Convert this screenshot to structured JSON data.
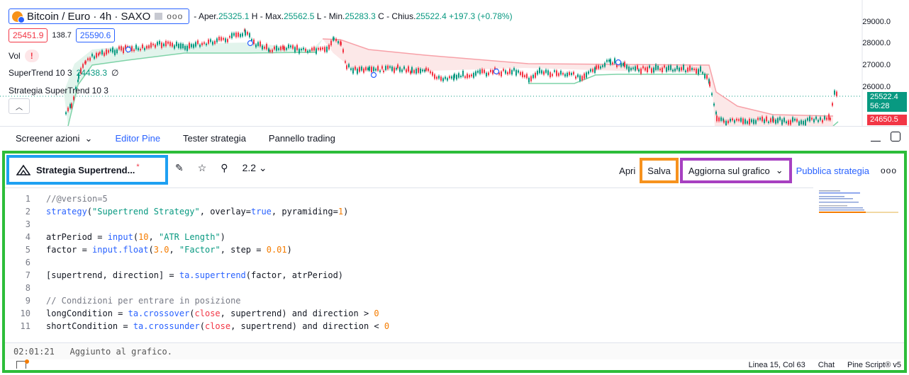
{
  "chart": {
    "symbol_title": "Bitcoin / Euro · 4h · SAXO",
    "ohlc": {
      "open_label": "Aper.",
      "open": "25325.1",
      "high_label": "H - Max.",
      "high": "25562.5",
      "low_label": "L - Min.",
      "low": "25283.3",
      "close_label": "C - Chius.",
      "close": "25522.4",
      "change": "+197.3 (+0.78%)"
    },
    "bid": "25451.9",
    "spread": "138.7",
    "ask": "25590.6",
    "vol_label": "Vol",
    "warning": "!",
    "indicator1": {
      "name": "SuperTrend 10 3",
      "value": "24438.3",
      "extra": "∅"
    },
    "indicator2": {
      "name": "Strategia SuperTrend 10 3"
    },
    "price_axis": [
      "29000.0",
      "28000.0",
      "27000.0",
      "26000.0"
    ],
    "last_price": "25522.4",
    "countdown": "56:28",
    "supertrend_price": "24650.5",
    "colors": {
      "up": "#089981",
      "down": "#f23645",
      "accent": "#2962ff"
    },
    "icons": [
      "bitcoin-icon",
      "chevron-up-icon"
    ]
  },
  "bottom_tabs": [
    "Screener azioni",
    "Editor Pine",
    "Tester strategia",
    "Pannello trading"
  ],
  "bottom_tabs_active": "Editor Pine",
  "editor": {
    "script_name": "Strategia Supertrend...",
    "unsaved_marker": "*",
    "version": "2.2",
    "open_label": "Apri",
    "save_label": "Salva",
    "update_label": "Aggiorna sul grafico",
    "publish_label": "Pubblica strategia",
    "code_lines": [
      {
        "n": "1",
        "text": "//@version=5"
      },
      {
        "n": "2",
        "text": "strategy(\"Supertrend Strategy\", overlay=true, pyramiding=1)"
      },
      {
        "n": "3",
        "text": ""
      },
      {
        "n": "4",
        "text": "atrPeriod = input(10, \"ATR Length\")"
      },
      {
        "n": "5",
        "text": "factor = input.float(3.0, \"Factor\", step = 0.01)"
      },
      {
        "n": "6",
        "text": ""
      },
      {
        "n": "7",
        "text": "[supertrend, direction] = ta.supertrend(factor, atrPeriod)"
      },
      {
        "n": "8",
        "text": ""
      },
      {
        "n": "9",
        "text": "// Condizioni per entrare in posizione"
      },
      {
        "n": "10",
        "text": "longCondition = ta.crossover(close, supertrend) and direction > 0"
      },
      {
        "n": "11",
        "text": "shortCondition = ta.crossunder(close, supertrend) and direction < 0"
      }
    ],
    "status_time": "02:01:21",
    "status_message": "Aggiunto al grafico.",
    "footer": {
      "position": "Linea 15, Col 63",
      "chat": "Chat",
      "language": "Pine Script® v5"
    }
  }
}
